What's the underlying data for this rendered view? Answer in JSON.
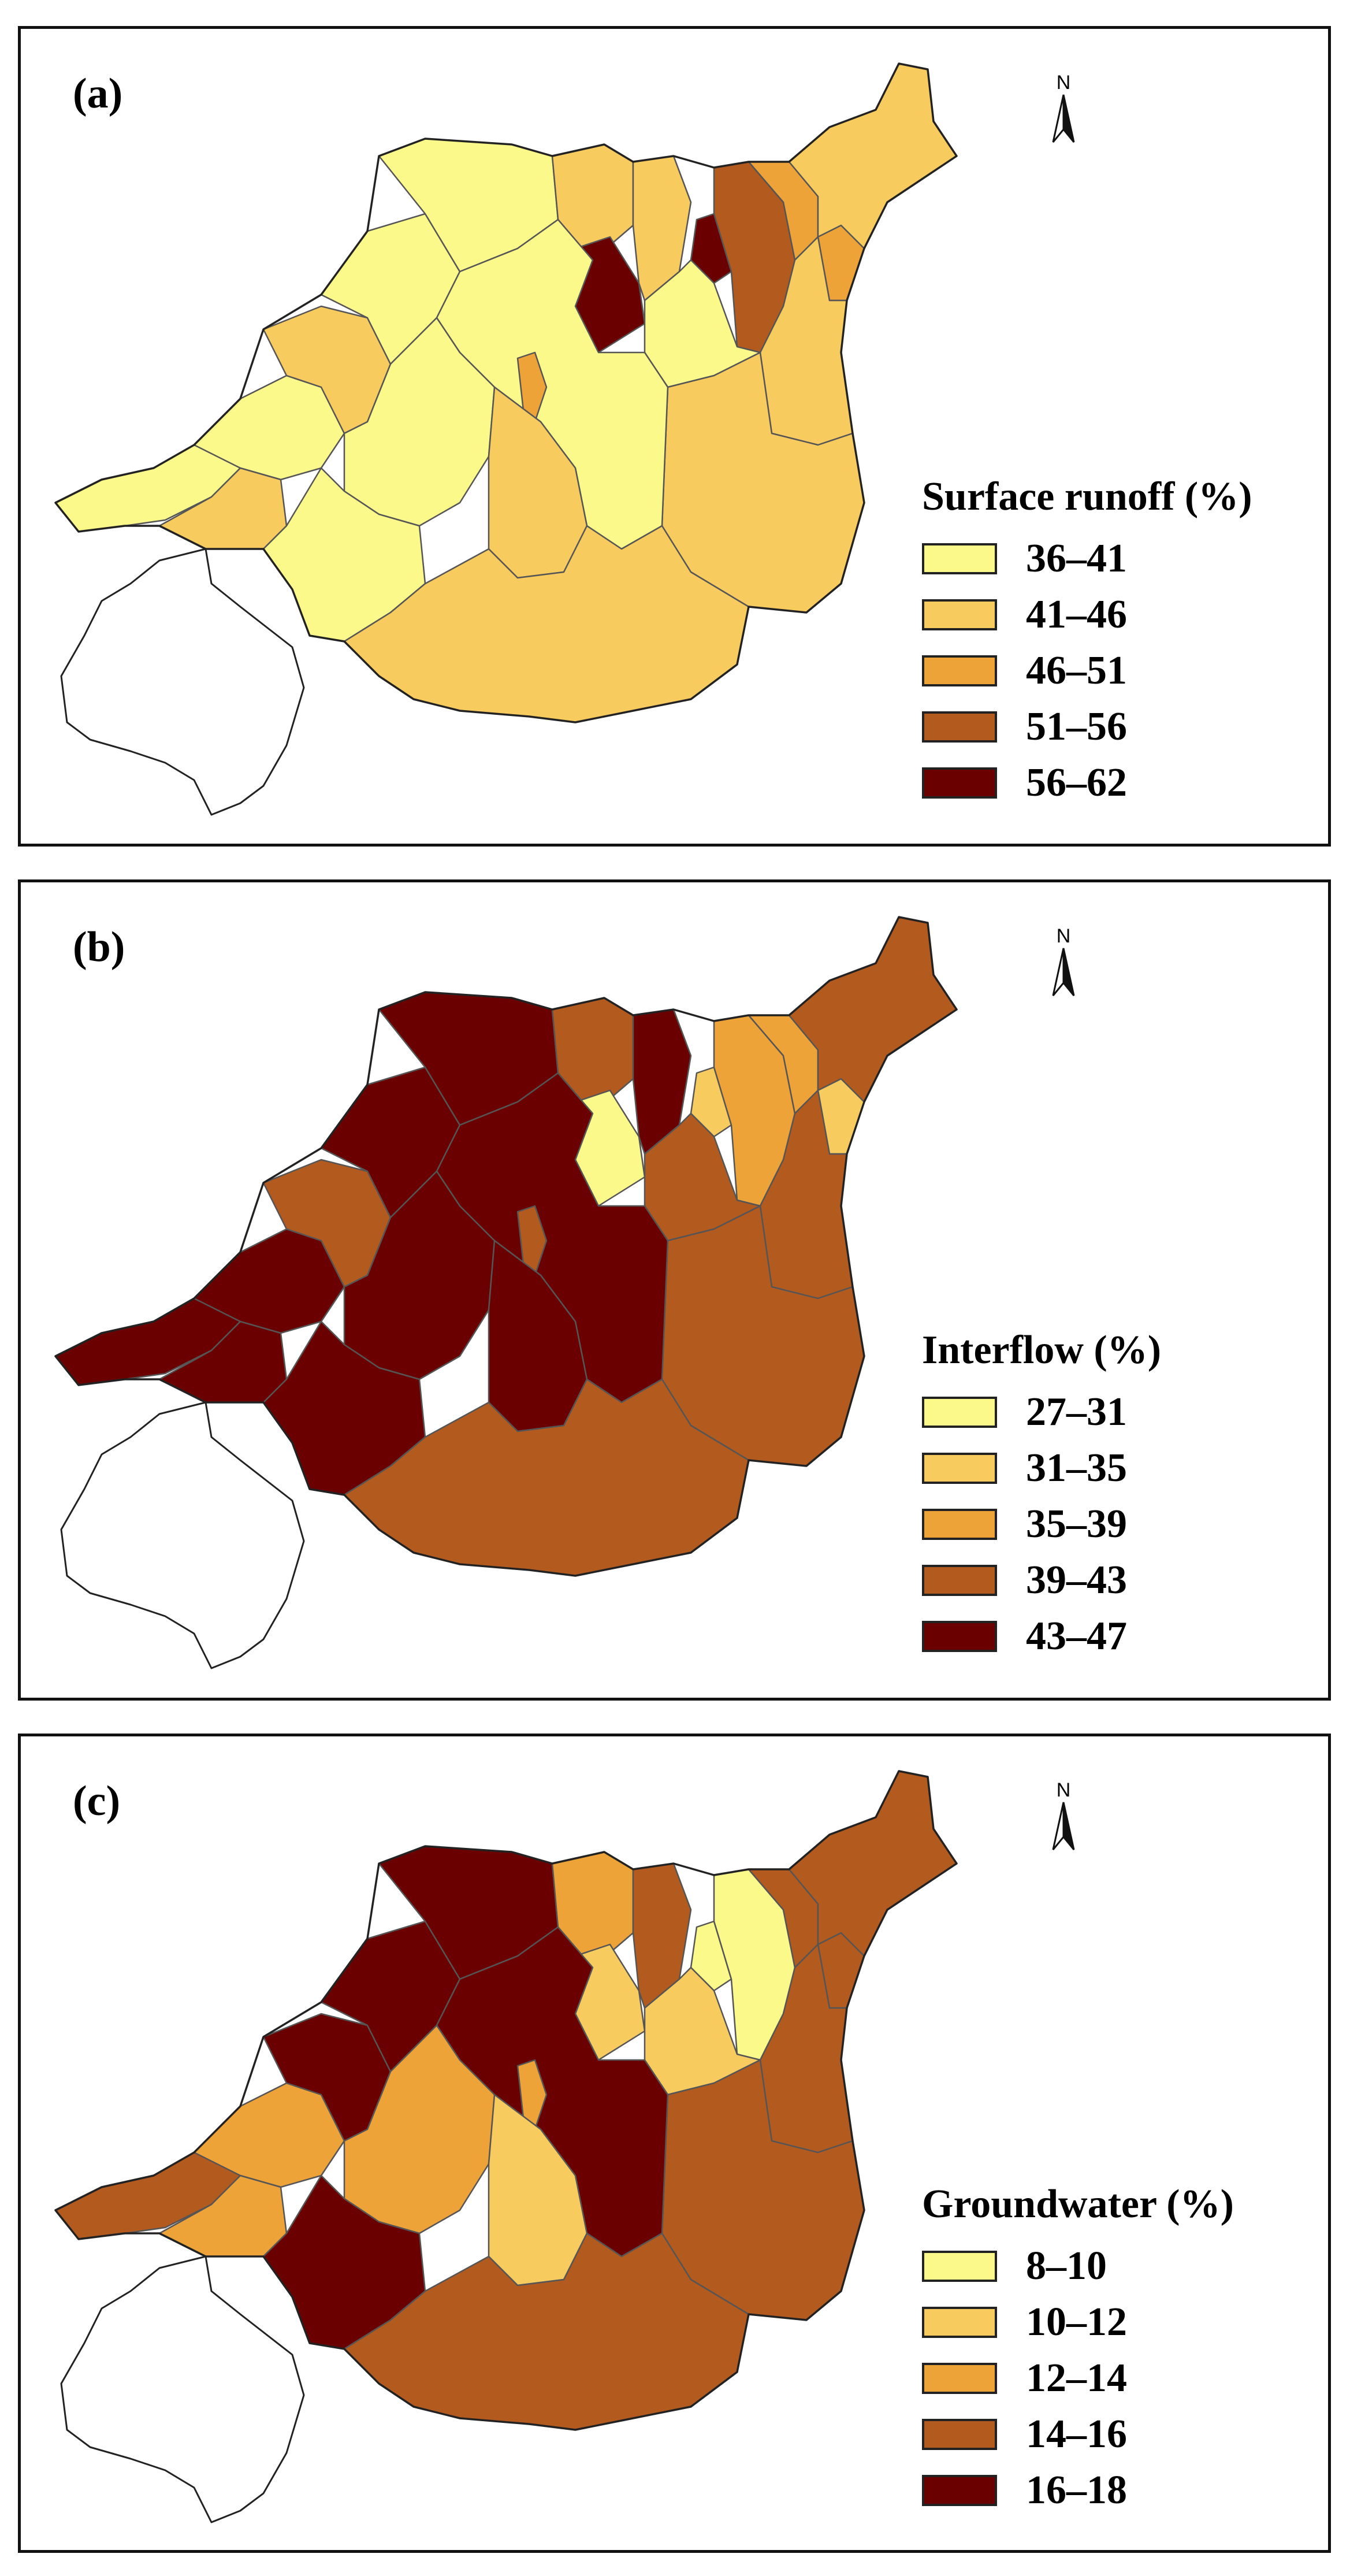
{
  "figure": {
    "panels": [
      {
        "id": "a",
        "label": "(a)",
        "north_label": "N",
        "legend_title": "Surface runoff (%)",
        "classes": [
          {
            "range": "36–41",
            "color": "#fbf98a"
          },
          {
            "range": "41–46",
            "color": "#f8cb5f"
          },
          {
            "range": "46–51",
            "color": "#eea339"
          },
          {
            "range": "51–56",
            "color": "#b35a1f"
          },
          {
            "range": "56–62",
            "color": "#6b0000"
          }
        ]
      },
      {
        "id": "b",
        "label": "(b)",
        "north_label": "N",
        "legend_title": "Interflow (%)",
        "classes": [
          {
            "range": "27–31",
            "color": "#fbf98a"
          },
          {
            "range": "31–35",
            "color": "#f8cb5f"
          },
          {
            "range": "35–39",
            "color": "#eea339"
          },
          {
            "range": "39–43",
            "color": "#b35a1f"
          },
          {
            "range": "43–47",
            "color": "#6b0000"
          }
        ]
      },
      {
        "id": "c",
        "label": "(c)",
        "north_label": "N",
        "legend_title": "Groundwater (%)",
        "classes": [
          {
            "range": "8–10",
            "color": "#fbf98a"
          },
          {
            "range": "10–12",
            "color": "#f8cb5f"
          },
          {
            "range": "12–14",
            "color": "#eea339"
          },
          {
            "range": "14–16",
            "color": "#b35a1f"
          },
          {
            "range": "16–18",
            "color": "#6b0000"
          }
        ]
      }
    ]
  }
}
